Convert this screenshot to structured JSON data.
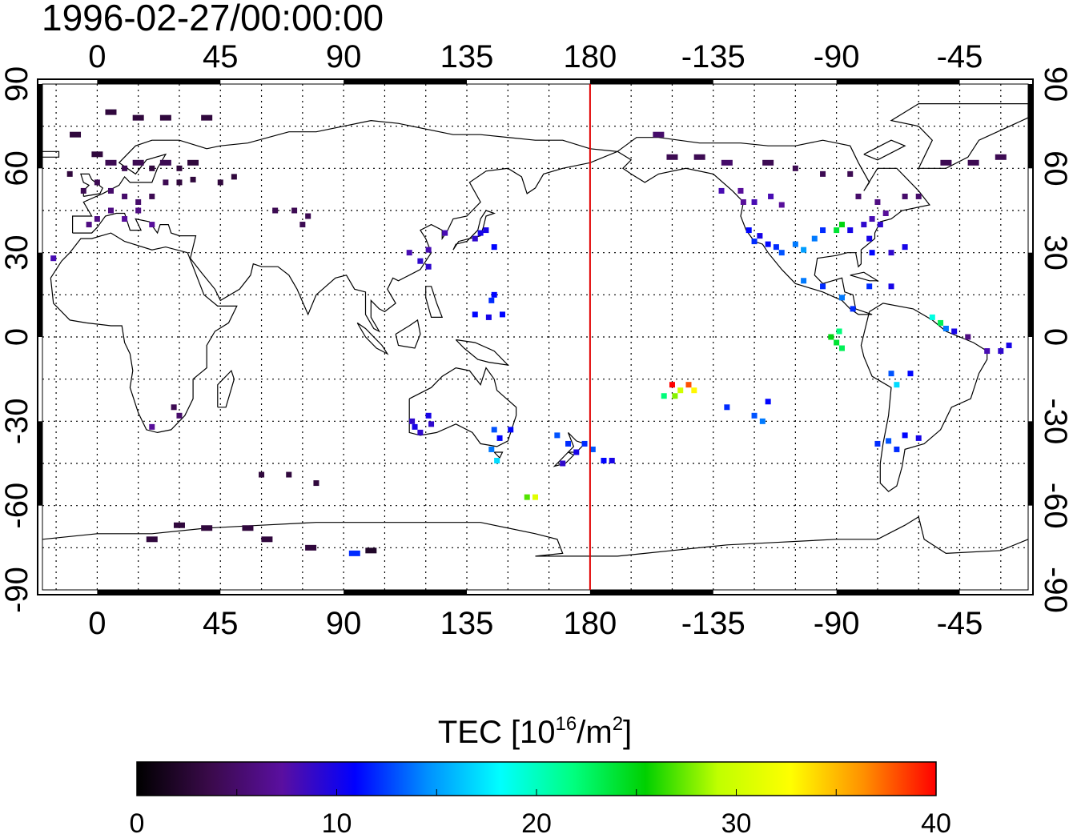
{
  "title": "1996-02-27/00:00:00",
  "map": {
    "lon_min": -20,
    "lon_max": 340,
    "lat_min": -90,
    "lat_max": 90,
    "grid": true,
    "date_line_lon": 180,
    "date_line_color": "#e00000",
    "top_lon_labels": [
      "0",
      "45",
      "90",
      "135",
      "180",
      "-135",
      "-90",
      "-45"
    ],
    "bottom_lon_labels": [
      "0",
      "45",
      "90",
      "135",
      "180",
      "-135",
      "-90",
      "-45"
    ],
    "left_lat_labels": [
      "90",
      "60",
      "30",
      "0",
      "-30",
      "-60",
      "-90"
    ],
    "right_lat_labels": [
      "90",
      "60",
      "30",
      "0",
      "-30",
      "-60",
      "-90"
    ]
  },
  "colorbar": {
    "label_main": "TEC  [10",
    "label_sup1": "16",
    "label_mid": "/m",
    "label_sup2": "2",
    "label_end": "]",
    "ticks": [
      "0",
      "10",
      "20",
      "30",
      "40"
    ],
    "min": 0,
    "max": 40,
    "colors": [
      "#000000",
      "#3a0a4a",
      "#5a0fa0",
      "#0000ff",
      "#0090ff",
      "#00ffff",
      "#00ff80",
      "#00d000",
      "#c0ff00",
      "#ffff00",
      "#ff9000",
      "#ff0000"
    ]
  },
  "tec_points": [
    {
      "lon": -8,
      "lat": 72,
      "tec": 3
    },
    {
      "lon": 5,
      "lat": 80,
      "tec": 3
    },
    {
      "lon": 15,
      "lat": 78,
      "tec": 3
    },
    {
      "lon": 25,
      "lat": 78,
      "tec": 3
    },
    {
      "lon": 40,
      "lat": 78,
      "tec": 3
    },
    {
      "lon": 0,
      "lat": 65,
      "tec": 3
    },
    {
      "lon": 5,
      "lat": 62,
      "tec": 4
    },
    {
      "lon": 10,
      "lat": 60,
      "tec": 4
    },
    {
      "lon": 15,
      "lat": 62,
      "tec": 4
    },
    {
      "lon": 20,
      "lat": 60,
      "tec": 3
    },
    {
      "lon": 25,
      "lat": 62,
      "tec": 4
    },
    {
      "lon": 30,
      "lat": 60,
      "tec": 3
    },
    {
      "lon": 35,
      "lat": 62,
      "tec": 3
    },
    {
      "lon": 0,
      "lat": 55,
      "tec": 4
    },
    {
      "lon": 5,
      "lat": 52,
      "tec": 5
    },
    {
      "lon": 10,
      "lat": 50,
      "tec": 5
    },
    {
      "lon": 15,
      "lat": 48,
      "tec": 5
    },
    {
      "lon": 20,
      "lat": 50,
      "tec": 4
    },
    {
      "lon": 25,
      "lat": 55,
      "tec": 4
    },
    {
      "lon": 30,
      "lat": 55,
      "tec": 3
    },
    {
      "lon": 35,
      "lat": 56,
      "tec": 3
    },
    {
      "lon": 5,
      "lat": 45,
      "tec": 6
    },
    {
      "lon": 10,
      "lat": 42,
      "tec": 7
    },
    {
      "lon": 15,
      "lat": 45,
      "tec": 6
    },
    {
      "lon": 0,
      "lat": 42,
      "tec": 6
    },
    {
      "lon": -3,
      "lat": 40,
      "tec": 6
    },
    {
      "lon": 20,
      "lat": 40,
      "tec": 7
    },
    {
      "lon": -10,
      "lat": 58,
      "tec": 3
    },
    {
      "lon": -5,
      "lat": 52,
      "tec": 4
    },
    {
      "lon": 45,
      "lat": 55,
      "tec": 3
    },
    {
      "lon": 50,
      "lat": 57,
      "tec": 3
    },
    {
      "lon": 65,
      "lat": 45,
      "tec": 4
    },
    {
      "lon": 72,
      "lat": 45,
      "tec": 4
    },
    {
      "lon": 77,
      "lat": 43,
      "tec": 4
    },
    {
      "lon": 75,
      "lat": 40,
      "tec": 4
    },
    {
      "lon": -16,
      "lat": 28,
      "tec": 8
    },
    {
      "lon": 28,
      "lat": -25,
      "tec": 4
    },
    {
      "lon": 30,
      "lat": -28,
      "tec": 5
    },
    {
      "lon": 20,
      "lat": -32,
      "tec": 7
    },
    {
      "lon": 60,
      "lat": -49,
      "tec": 3
    },
    {
      "lon": 70,
      "lat": -49,
      "tec": 3
    },
    {
      "lon": 80,
      "lat": -52,
      "tec": 3
    },
    {
      "lon": 30,
      "lat": -67,
      "tec": 3
    },
    {
      "lon": 40,
      "lat": -68,
      "tec": 3
    },
    {
      "lon": 55,
      "lat": -68,
      "tec": 3
    },
    {
      "lon": 20,
      "lat": -72,
      "tec": 3
    },
    {
      "lon": 62,
      "lat": -72,
      "tec": 3
    },
    {
      "lon": 78,
      "lat": -75,
      "tec": 3
    },
    {
      "lon": 94,
      "lat": -77,
      "tec": 12
    },
    {
      "lon": 100,
      "lat": -76,
      "tec": 2
    },
    {
      "lon": 140,
      "lat": 37,
      "tec": 10
    },
    {
      "lon": 138,
      "lat": 35,
      "tec": 9
    },
    {
      "lon": 142,
      "lat": 38,
      "tec": 10
    },
    {
      "lon": 127,
      "lat": 37,
      "tec": 8
    },
    {
      "lon": 121,
      "lat": 31,
      "tec": 8
    },
    {
      "lon": 121,
      "lat": 25,
      "tec": 9
    },
    {
      "lon": 114,
      "lat": 30,
      "tec": 8
    },
    {
      "lon": 118,
      "lat": 27,
      "tec": 9
    },
    {
      "lon": 145,
      "lat": 32,
      "tec": 11
    },
    {
      "lon": 145,
      "lat": 15,
      "tec": 11
    },
    {
      "lon": 144,
      "lat": 13,
      "tec": 12
    },
    {
      "lon": 148,
      "lat": 8,
      "tec": 11
    },
    {
      "lon": 138,
      "lat": 8,
      "tec": 11
    },
    {
      "lon": 143,
      "lat": 7,
      "tec": 10
    },
    {
      "lon": 115,
      "lat": -30,
      "tec": 9
    },
    {
      "lon": 116,
      "lat": -32,
      "tec": 10
    },
    {
      "lon": 118,
      "lat": -34,
      "tec": 9
    },
    {
      "lon": 121,
      "lat": -28,
      "tec": 10
    },
    {
      "lon": 122,
      "lat": -31,
      "tec": 9
    },
    {
      "lon": 145,
      "lat": -33,
      "tec": 13
    },
    {
      "lon": 147,
      "lat": -36,
      "tec": 11
    },
    {
      "lon": 144,
      "lat": -40,
      "tec": 14
    },
    {
      "lon": 146,
      "lat": -44,
      "tec": 17
    },
    {
      "lon": 151,
      "lat": -33,
      "tec": 11
    },
    {
      "lon": 157,
      "lat": -57,
      "tec": 27
    },
    {
      "lon": 160,
      "lat": -57,
      "tec": 31
    },
    {
      "lon": 168,
      "lat": -35,
      "tec": 13
    },
    {
      "lon": 172,
      "lat": -38,
      "tec": 12
    },
    {
      "lon": 175,
      "lat": -41,
      "tec": 10
    },
    {
      "lon": 170,
      "lat": -45,
      "tec": 9
    },
    {
      "lon": 178,
      "lat": -38,
      "tec": 12
    },
    {
      "lon": 185,
      "lat": -44,
      "tec": 11
    },
    {
      "lon": 181,
      "lat": -40,
      "tec": 13
    },
    {
      "lon": 188,
      "lat": -44,
      "tec": 10
    },
    {
      "lon": 210,
      "lat": -17,
      "tec": 40
    },
    {
      "lon": 213,
      "lat": -19,
      "tec": 30
    },
    {
      "lon": 216,
      "lat": -17,
      "tec": 38
    },
    {
      "lon": 218,
      "lat": -19,
      "tec": 33
    },
    {
      "lon": 207,
      "lat": -21,
      "tec": 22
    },
    {
      "lon": 211,
      "lat": -21,
      "tec": 28
    },
    {
      "lon": 230,
      "lat": -25,
      "tec": 12
    },
    {
      "lon": 245,
      "lat": -23,
      "tec": 11
    },
    {
      "lon": 240,
      "lat": -28,
      "tec": 13
    },
    {
      "lon": 243,
      "lat": -30,
      "tec": 14
    },
    {
      "lon": 205,
      "lat": 72,
      "tec": 5
    },
    {
      "lon": 210,
      "lat": 64,
      "tec": 4
    },
    {
      "lon": 220,
      "lat": 64,
      "tec": 4
    },
    {
      "lon": 230,
      "lat": 62,
      "tec": 5
    },
    {
      "lon": 245,
      "lat": 62,
      "tec": 4
    },
    {
      "lon": 255,
      "lat": 60,
      "tec": 4
    },
    {
      "lon": 265,
      "lat": 58,
      "tec": 4
    },
    {
      "lon": 275,
      "lat": 58,
      "tec": 4
    },
    {
      "lon": 278,
      "lat": 50,
      "tec": 5
    },
    {
      "lon": 285,
      "lat": 48,
      "tec": 6
    },
    {
      "lon": 295,
      "lat": 50,
      "tec": 5
    },
    {
      "lon": 300,
      "lat": 50,
      "tec": 5
    },
    {
      "lon": 310,
      "lat": 62,
      "tec": 4
    },
    {
      "lon": 320,
      "lat": 62,
      "tec": 4
    },
    {
      "lon": 330,
      "lat": 64,
      "tec": 4
    },
    {
      "lon": 236,
      "lat": 48,
      "tec": 7
    },
    {
      "lon": 240,
      "lat": 48,
      "tec": 8
    },
    {
      "lon": 235,
      "lat": 52,
      "tec": 7
    },
    {
      "lon": 228,
      "lat": 52,
      "tec": 8
    },
    {
      "lon": 246,
      "lat": 50,
      "tec": 8
    },
    {
      "lon": 250,
      "lat": 47,
      "tec": 7
    },
    {
      "lon": 238,
      "lat": 38,
      "tec": 11
    },
    {
      "lon": 240,
      "lat": 34,
      "tec": 12
    },
    {
      "lon": 242,
      "lat": 36,
      "tec": 10
    },
    {
      "lon": 245,
      "lat": 33,
      "tec": 11
    },
    {
      "lon": 248,
      "lat": 32,
      "tec": 12
    },
    {
      "lon": 250,
      "lat": 30,
      "tec": 13
    },
    {
      "lon": 255,
      "lat": 33,
      "tec": 14
    },
    {
      "lon": 258,
      "lat": 31,
      "tec": 15
    },
    {
      "lon": 262,
      "lat": 35,
      "tec": 14
    },
    {
      "lon": 265,
      "lat": 38,
      "tec": 12
    },
    {
      "lon": 270,
      "lat": 38,
      "tec": 24
    },
    {
      "lon": 272,
      "lat": 40,
      "tec": 25
    },
    {
      "lon": 275,
      "lat": 38,
      "tec": 10
    },
    {
      "lon": 280,
      "lat": 40,
      "tec": 9
    },
    {
      "lon": 283,
      "lat": 42,
      "tec": 8
    },
    {
      "lon": 286,
      "lat": 40,
      "tec": 9
    },
    {
      "lon": 288,
      "lat": 44,
      "tec": 7
    },
    {
      "lon": 282,
      "lat": 35,
      "tec": 10
    },
    {
      "lon": 283,
      "lat": 30,
      "tec": 11
    },
    {
      "lon": 290,
      "lat": 30,
      "tec": 9
    },
    {
      "lon": 295,
      "lat": 32,
      "tec": 10
    },
    {
      "lon": 258,
      "lat": 20,
      "tec": 14
    },
    {
      "lon": 265,
      "lat": 18,
      "tec": 12
    },
    {
      "lon": 272,
      "lat": 14,
      "tec": 14
    },
    {
      "lon": 276,
      "lat": 10,
      "tec": 12
    },
    {
      "lon": 282,
      "lat": 18,
      "tec": 12
    },
    {
      "lon": 290,
      "lat": 18,
      "tec": 10
    },
    {
      "lon": 271,
      "lat": 2,
      "tec": 22
    },
    {
      "lon": 270,
      "lat": -2,
      "tec": 24
    },
    {
      "lon": 272,
      "lat": -4,
      "tec": 23
    },
    {
      "lon": 268,
      "lat": 0,
      "tec": 25
    },
    {
      "lon": 305,
      "lat": 7,
      "tec": 19
    },
    {
      "lon": 308,
      "lat": 5,
      "tec": 23
    },
    {
      "lon": 310,
      "lat": 3,
      "tec": 14
    },
    {
      "lon": 313,
      "lat": 2,
      "tec": 10
    },
    {
      "lon": 318,
      "lat": 0,
      "tec": 6
    },
    {
      "lon": 325,
      "lat": -5,
      "tec": 8
    },
    {
      "lon": 330,
      "lat": -5,
      "tec": 9
    },
    {
      "lon": 333,
      "lat": -3,
      "tec": 10
    },
    {
      "lon": 290,
      "lat": -13,
      "tec": 13
    },
    {
      "lon": 292,
      "lat": -17,
      "tec": 17
    },
    {
      "lon": 297,
      "lat": -13,
      "tec": 11
    },
    {
      "lon": 289,
      "lat": -37,
      "tec": 13
    },
    {
      "lon": 295,
      "lat": -35,
      "tec": 11
    },
    {
      "lon": 300,
      "lat": -36,
      "tec": 10
    },
    {
      "lon": 285,
      "lat": -38,
      "tec": 12
    },
    {
      "lon": 292,
      "lat": -40,
      "tec": 12
    }
  ]
}
